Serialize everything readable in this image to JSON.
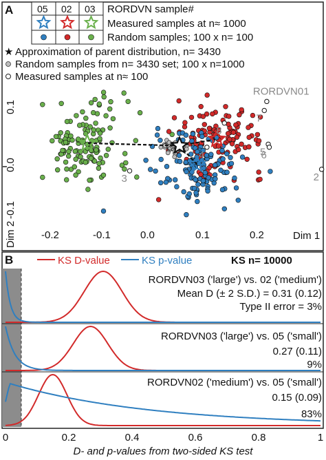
{
  "panel_a": {
    "letter": "A",
    "legend": {
      "header": [
        "05",
        "02",
        "03"
      ],
      "title": "RORDVN sample#",
      "row1": "Measured samples at n≈ 1000",
      "row2": "Random samples; 100 x n= 100",
      "note1": "Approximation of parent distribution, n= 3430",
      "note2": "Random samples from n= 3430 set; 100 x n=1000",
      "note3": "Measured samples at n≈ 100"
    },
    "rordvn01_label": "RORDVN01",
    "small_sample_labels": [
      "2",
      "3",
      "4",
      "5",
      "6",
      "7",
      "8"
    ],
    "x_axis_title": "Dim 1",
    "y_axis_title": "Dim 2",
    "x_ticks": [
      "-0.2",
      "-0.1",
      "0.0",
      "0.1",
      "0.2"
    ],
    "y_ticks": [
      "0.1",
      "0.0",
      "-0.1"
    ]
  },
  "panel_b": {
    "letter": "B",
    "legend_d": "KS D-value",
    "legend_p": "KS p-value",
    "legend_n": "KS n= 10000",
    "rows": [
      {
        "label": "RORDVN03 ('large') vs. 02 ('medium')",
        "stat": "Mean D (± 2 S.D.) = 0.31 (0.12)",
        "error": "Type II error = 3%"
      },
      {
        "label": "RORDVN03 ('large') vs. 05 ('small')",
        "stat": "0.27 (0.11)",
        "error": "9%"
      },
      {
        "label": "RORDVN02 ('medium') vs. 05 ('small')",
        "stat": "0.15 (0.09)",
        "error": "83%"
      }
    ],
    "x_ticks": [
      "0",
      "0.2",
      "0.4",
      "0.6",
      "0.8",
      "1"
    ],
    "x_axis_title": "D- and p-values from two-sided KS test"
  },
  "colors": {
    "green": "#6ab04c",
    "red": "#d22a2a",
    "blue": "#2f7fc0",
    "grey": "#bdbdbd",
    "alpha_band": "#8c8c8c"
  },
  "chart_data": [
    {
      "type": "scatter",
      "xlim": [
        -0.26,
        0.3
      ],
      "ylim": [
        -0.15,
        0.135
      ],
      "xlabel": "Dim 1",
      "ylabel": "Dim 2",
      "series": [
        {
          "name": "05",
          "center": [
            -0.17,
            0.02
          ],
          "spread": [
            0.045,
            0.045
          ],
          "count": 130
        },
        {
          "name": "02",
          "center": [
            0.1,
            0.03
          ],
          "spread": [
            0.045,
            0.035
          ],
          "count": 130
        },
        {
          "name": "03",
          "center": [
            0.06,
            -0.03
          ],
          "spread": [
            0.045,
            0.035
          ],
          "count": 130
        },
        {
          "name": "Random samples from n= 3430 set",
          "center": [
            0.01,
            0.012
          ],
          "spread": [
            0.012,
            0.006
          ],
          "count": 60
        }
      ],
      "parent": [
        0.02,
        0.015
      ],
      "measured_large": [
        [
          -0.165,
          0.02
        ],
        [
          0.095,
          0.028
        ],
        [
          0.055,
          -0.022
        ]
      ],
      "small_samples": [
        {
          "label": "RORDVN01",
          "x": 0.195,
          "y": 0.103
        },
        {
          "label": "2",
          "x": 0.305,
          "y": -0.032
        },
        {
          "label": "3",
          "x": -0.08,
          "y": -0.035
        },
        {
          "label": "4",
          "x": 0.075,
          "y": 0.012
        },
        {
          "label": "5",
          "x": 0.198,
          "y": 0.018
        },
        {
          "label": "6",
          "x": 0.2,
          "y": 0.012
        },
        {
          "label": "7",
          "x": 0.19,
          "y": 0.085
        },
        {
          "label": "8",
          "x": 0.11,
          "y": 0.06
        }
      ]
    },
    {
      "type": "line",
      "xlim": [
        0,
        1
      ],
      "xlabel": "D- and p-values from two-sided KS test",
      "alpha": 0.05,
      "series": [
        {
          "name": "KS D-value",
          "panel": 1,
          "shape": "gaussian",
          "mean": 0.31,
          "sd": 0.06
        },
        {
          "name": "KS p-value",
          "panel": 1,
          "shape": "exp",
          "scale": 0.015
        },
        {
          "name": "KS D-value",
          "panel": 2,
          "shape": "gaussian",
          "mean": 0.27,
          "sd": 0.055
        },
        {
          "name": "KS p-value",
          "panel": 2,
          "shape": "exp",
          "scale": 0.03
        },
        {
          "name": "KS D-value",
          "panel": 3,
          "shape": "gaussian",
          "mean": 0.15,
          "sd": 0.045
        },
        {
          "name": "KS p-value",
          "panel": 3,
          "shape": "decay",
          "scale": 0.45
        }
      ]
    }
  ]
}
